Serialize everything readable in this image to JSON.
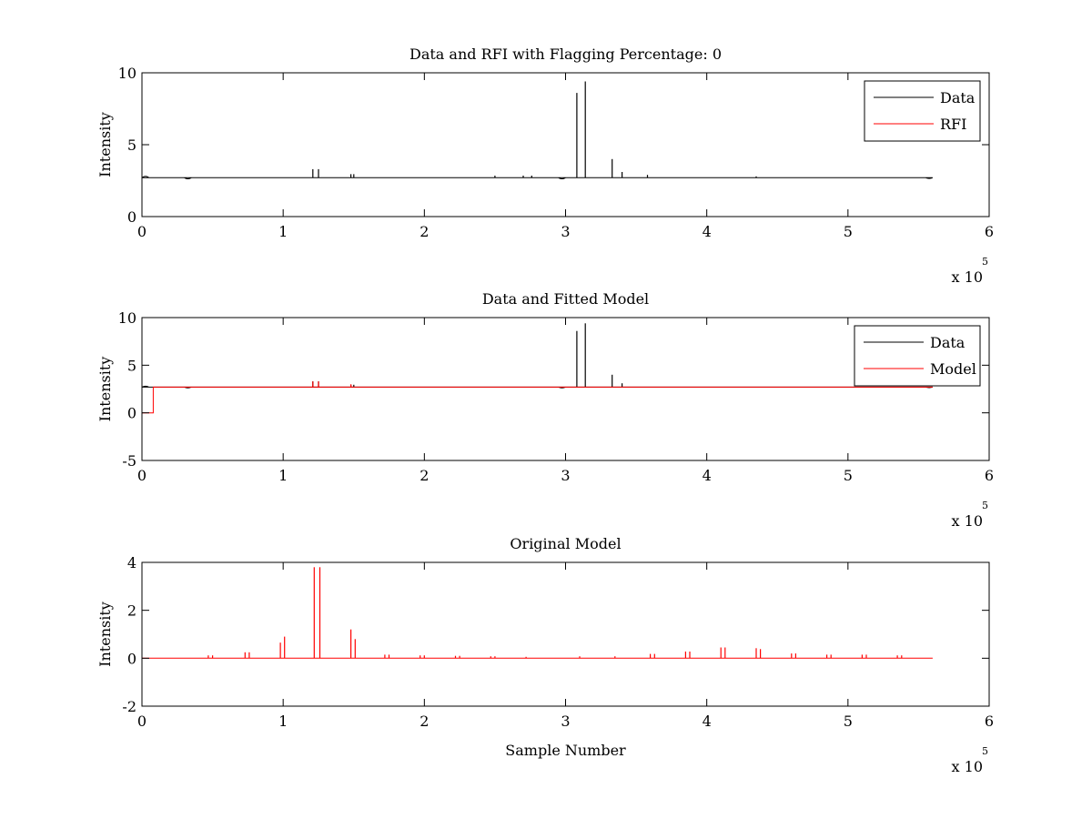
{
  "chart_data": [
    {
      "type": "line",
      "title": "Data and RFI with Flagging Percentage: 0",
      "xlabel": "",
      "ylabel": "Intensity",
      "xlim": [
        0,
        600000
      ],
      "ylim": [
        0,
        10
      ],
      "xticks": [
        0,
        1,
        2,
        3,
        4,
        5,
        6
      ],
      "yticks": [
        0,
        5,
        10
      ],
      "x_multiplier": {
        "base": "x 10",
        "exponent": "5"
      },
      "legend": {
        "position": "top-right",
        "entries": [
          "Data",
          "RFI"
        ]
      },
      "series": [
        {
          "name": "Data",
          "color": "#000000",
          "baseline": 2.7,
          "x_end": 560000,
          "dips": [
            [
              0,
              2.9
            ],
            [
              30000,
              2.55
            ],
            [
              295000,
              2.55
            ],
            [
              555000,
              2.6
            ]
          ],
          "spikes": [
            [
              121000,
              3.3
            ],
            [
              125000,
              3.3
            ],
            [
              148000,
              2.95
            ],
            [
              150000,
              2.95
            ],
            [
              250000,
              2.85
            ],
            [
              270000,
              2.85
            ],
            [
              276000,
              2.85
            ],
            [
              308000,
              8.6
            ],
            [
              314000,
              9.4
            ],
            [
              333000,
              4.0
            ],
            [
              340000,
              3.1
            ],
            [
              358000,
              2.9
            ],
            [
              435000,
              2.8
            ]
          ]
        },
        {
          "name": "RFI",
          "color": "#ff0000",
          "points": []
        }
      ]
    },
    {
      "type": "line",
      "title": "Data and Fitted Model",
      "xlabel": "",
      "ylabel": "Intensity",
      "xlim": [
        0,
        600000
      ],
      "ylim": [
        -5,
        10
      ],
      "xticks": [
        0,
        1,
        2,
        3,
        4,
        5,
        6
      ],
      "yticks": [
        -5,
        0,
        5,
        10
      ],
      "x_multiplier": {
        "base": "x 10",
        "exponent": "5"
      },
      "legend": {
        "position": "top-right",
        "entries": [
          "Data",
          "Model"
        ]
      },
      "series": [
        {
          "name": "Data",
          "color": "#000000",
          "baseline": 2.7,
          "x_end": 560000,
          "dips": [
            [
              0,
              2.9
            ],
            [
              30000,
              2.55
            ],
            [
              295000,
              2.55
            ],
            [
              555000,
              2.6
            ]
          ],
          "spikes": [
            [
              121000,
              3.3
            ],
            [
              125000,
              3.3
            ],
            [
              148000,
              2.95
            ],
            [
              150000,
              2.95
            ],
            [
              308000,
              8.6
            ],
            [
              314000,
              9.4
            ],
            [
              333000,
              4.0
            ],
            [
              340000,
              3.1
            ]
          ]
        },
        {
          "name": "Model",
          "color": "#ff0000",
          "steps": [
            [
              0,
              0
            ],
            [
              8000,
              0
            ],
            [
              8000,
              2.7
            ],
            [
              560000,
              2.7
            ]
          ],
          "spikes": [
            [
              121000,
              3.3
            ],
            [
              125000,
              3.3
            ],
            [
              148000,
              3.0
            ]
          ]
        }
      ]
    },
    {
      "type": "line",
      "title": "Original Model",
      "xlabel": "Sample Number",
      "ylabel": "Intensity",
      "xlim": [
        0,
        600000
      ],
      "ylim": [
        -2,
        4
      ],
      "xticks": [
        0,
        1,
        2,
        3,
        4,
        5,
        6
      ],
      "yticks": [
        -2,
        0,
        2,
        4
      ],
      "x_multiplier": {
        "base": "x 10",
        "exponent": "5"
      },
      "legend": null,
      "series": [
        {
          "name": "",
          "color": "#ff0000",
          "baseline": 0,
          "x_end": 560000,
          "spikes": [
            [
              47000,
              0.12
            ],
            [
              50000,
              0.12
            ],
            [
              73000,
              0.25
            ],
            [
              76000,
              0.25
            ],
            [
              98000,
              0.65
            ],
            [
              101000,
              0.9
            ],
            [
              122000,
              3.8
            ],
            [
              126000,
              3.8
            ],
            [
              148000,
              1.2
            ],
            [
              151000,
              0.8
            ],
            [
              172000,
              0.15
            ],
            [
              175000,
              0.15
            ],
            [
              197000,
              0.12
            ],
            [
              200000,
              0.12
            ],
            [
              222000,
              0.1
            ],
            [
              225000,
              0.1
            ],
            [
              247000,
              0.08
            ],
            [
              250000,
              0.08
            ],
            [
              272000,
              0.06
            ],
            [
              310000,
              0.08
            ],
            [
              335000,
              0.08
            ],
            [
              360000,
              0.18
            ],
            [
              363000,
              0.18
            ],
            [
              385000,
              0.28
            ],
            [
              388000,
              0.28
            ],
            [
              410000,
              0.45
            ],
            [
              413000,
              0.45
            ],
            [
              435000,
              0.42
            ],
            [
              438000,
              0.38
            ],
            [
              460000,
              0.2
            ],
            [
              463000,
              0.2
            ],
            [
              485000,
              0.15
            ],
            [
              488000,
              0.15
            ],
            [
              510000,
              0.15
            ],
            [
              513000,
              0.15
            ],
            [
              535000,
              0.12
            ],
            [
              538000,
              0.12
            ]
          ]
        }
      ]
    }
  ]
}
